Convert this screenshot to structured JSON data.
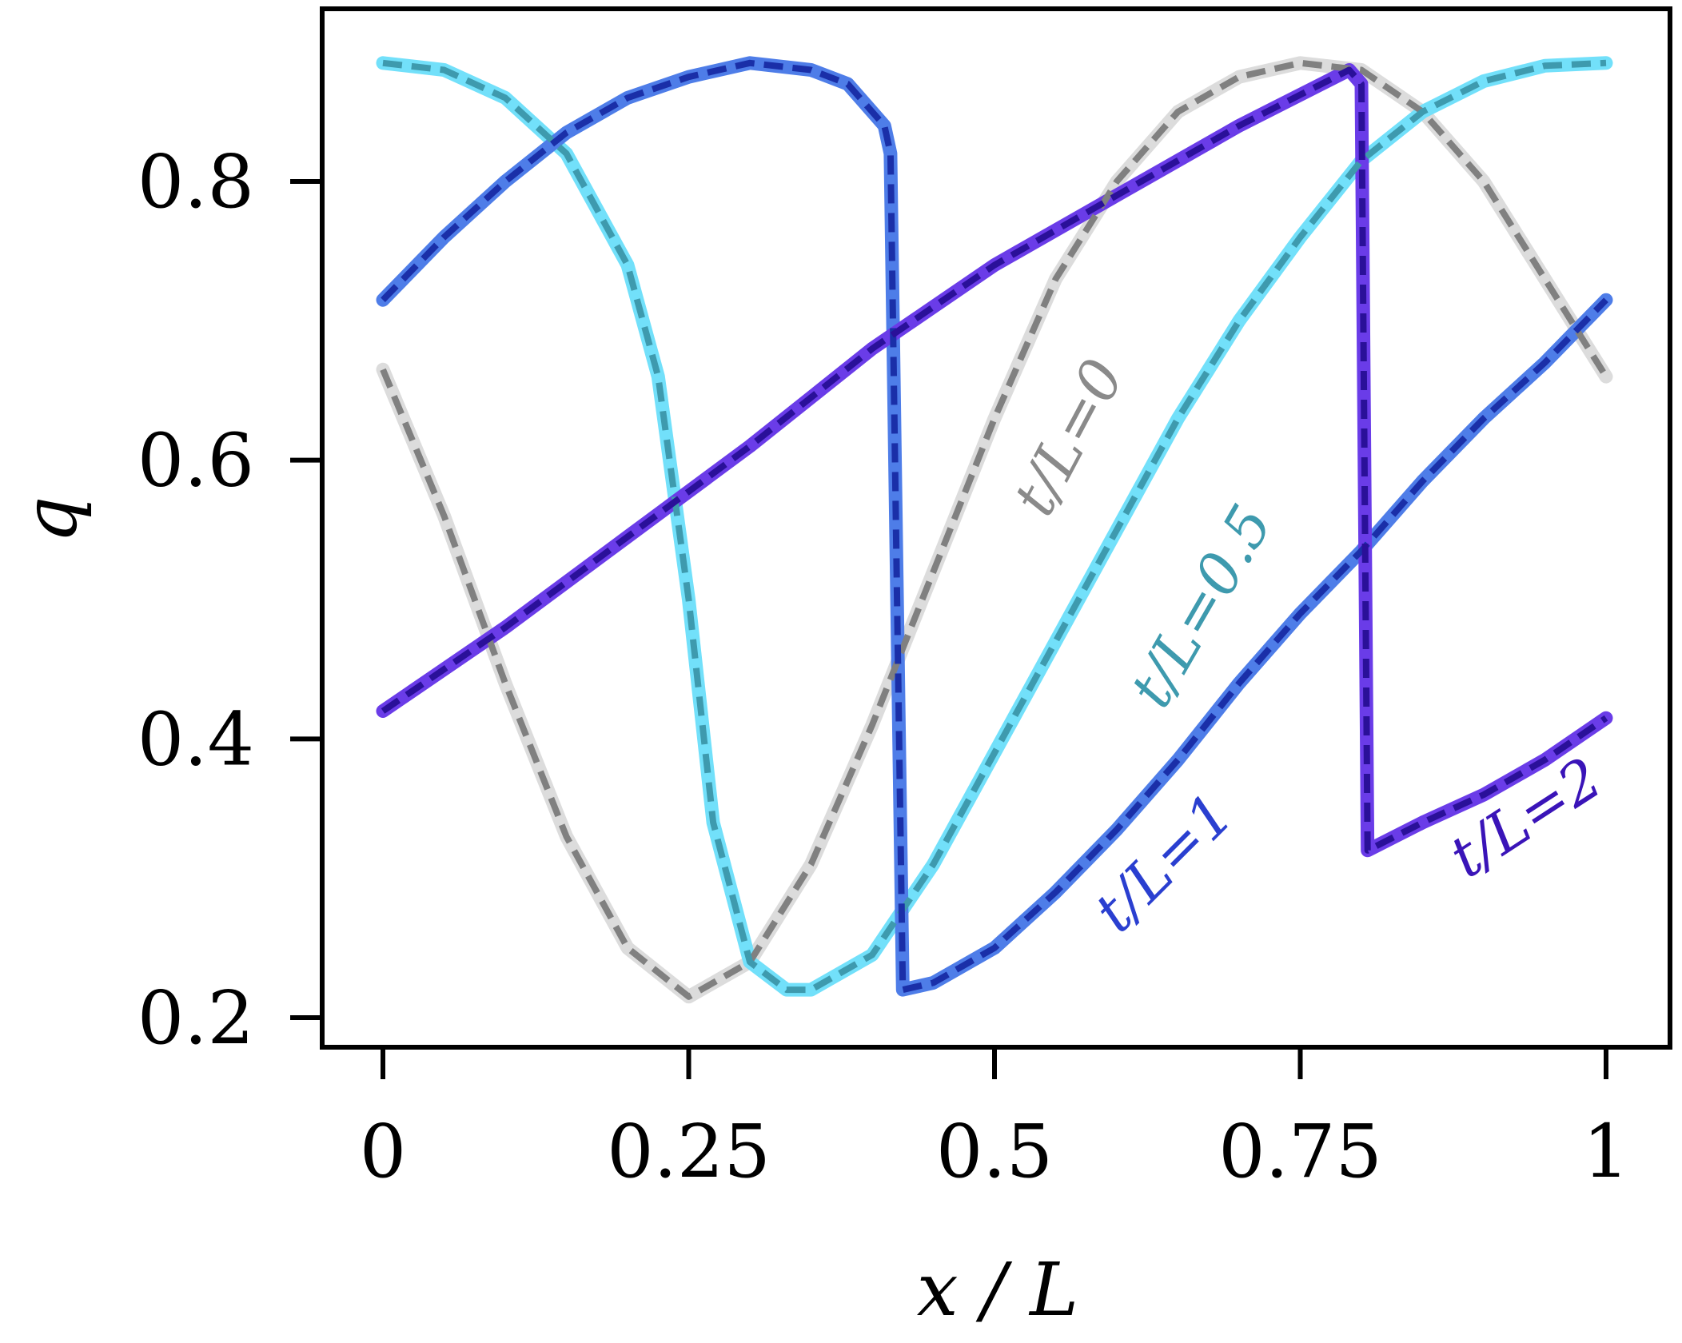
{
  "chart_data": {
    "type": "line",
    "title": "",
    "xlabel": "x / L",
    "ylabel": "q",
    "xlim": [
      0,
      1
    ],
    "ylim": [
      0.2,
      0.88
    ],
    "x_ticks": [
      0,
      0.25,
      0.5,
      0.75,
      1
    ],
    "x_tick_labels": [
      "0",
      "0.25",
      "0.5",
      "0.75",
      "1"
    ],
    "y_ticks": [
      0.2,
      0.4,
      0.6,
      0.8
    ],
    "y_tick_labels": [
      "0.2",
      "0.4",
      "0.6",
      "0.8"
    ],
    "grid": false,
    "series": [
      {
        "name": "t/L=0",
        "color": "#dcdcdc",
        "dash_color": "#808080",
        "label_color": "#8a8a8a",
        "x": [
          0,
          0.05,
          0.1,
          0.15,
          0.2,
          0.25,
          0.3,
          0.35,
          0.4,
          0.45,
          0.5,
          0.55,
          0.6,
          0.65,
          0.7,
          0.75,
          0.8,
          0.85,
          0.9,
          0.95,
          1.0
        ],
        "y": [
          0.665,
          0.56,
          0.44,
          0.33,
          0.25,
          0.215,
          0.24,
          0.31,
          0.41,
          0.52,
          0.63,
          0.73,
          0.8,
          0.85,
          0.875,
          0.885,
          0.88,
          0.85,
          0.8,
          0.73,
          0.66
        ]
      },
      {
        "name": "t/L=0.5",
        "color": "#72e0fa",
        "dash_color": "#3e9aae",
        "label_color": "#3e9aae",
        "x": [
          0,
          0.05,
          0.1,
          0.15,
          0.2,
          0.225,
          0.25,
          0.27,
          0.3,
          0.33,
          0.35,
          0.4,
          0.45,
          0.5,
          0.55,
          0.6,
          0.65,
          0.7,
          0.75,
          0.8,
          0.85,
          0.9,
          0.95,
          1.0
        ],
        "y": [
          0.885,
          0.88,
          0.86,
          0.82,
          0.74,
          0.66,
          0.5,
          0.34,
          0.24,
          0.22,
          0.22,
          0.245,
          0.31,
          0.39,
          0.47,
          0.55,
          0.63,
          0.7,
          0.76,
          0.815,
          0.85,
          0.872,
          0.883,
          0.885
        ]
      },
      {
        "name": "t/L=1",
        "color": "#4e7de8",
        "dash_color": "#1a2fa8",
        "label_color": "#2a3fd0",
        "x": [
          0,
          0.05,
          0.1,
          0.15,
          0.2,
          0.25,
          0.3,
          0.35,
          0.38,
          0.41,
          0.415,
          0.425,
          0.45,
          0.5,
          0.55,
          0.6,
          0.65,
          0.7,
          0.75,
          0.8,
          0.85,
          0.9,
          0.95,
          1.0
        ],
        "y": [
          0.715,
          0.76,
          0.8,
          0.835,
          0.86,
          0.875,
          0.885,
          0.88,
          0.87,
          0.84,
          0.82,
          0.22,
          0.225,
          0.25,
          0.29,
          0.335,
          0.385,
          0.44,
          0.49,
          0.535,
          0.585,
          0.63,
          0.67,
          0.715
        ]
      },
      {
        "name": "t/L=2",
        "color": "#6a3ce8",
        "dash_color": "#2a1099",
        "label_color": "#3a14b8",
        "x": [
          0,
          0.1,
          0.2,
          0.3,
          0.4,
          0.5,
          0.6,
          0.7,
          0.79,
          0.8,
          0.805,
          0.85,
          0.9,
          0.95,
          1.0
        ],
        "y": [
          0.42,
          0.48,
          0.545,
          0.61,
          0.68,
          0.74,
          0.79,
          0.84,
          0.88,
          0.87,
          0.32,
          0.34,
          0.36,
          0.385,
          0.415
        ]
      }
    ]
  }
}
